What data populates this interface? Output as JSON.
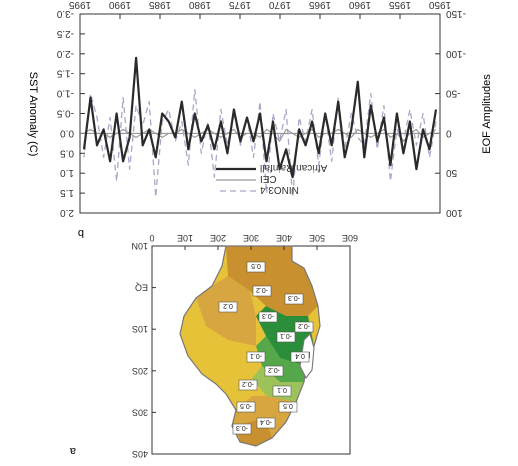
{
  "chart_data": [
    {
      "type": "line",
      "panel_label": "b",
      "orientation_note": "rotated 180 degrees",
      "x_ticks": [
        "1950",
        "1955",
        "1960",
        "1965",
        "1970",
        "1975",
        "1980",
        "1985",
        "1990",
        "1995"
      ],
      "ylabel_left": "SST Anomaly (C)",
      "ylabel_right": "EOF Amplitudes",
      "left_ticks": [
        "2.0",
        "1.5",
        "1.0",
        "0.5",
        "0.0",
        "-0.5",
        "-1.0",
        "-1.5",
        "-2.0",
        "-2.5",
        "-3.0"
      ],
      "right_ticks": [
        "100",
        "50",
        "0",
        "-50",
        "-100",
        "-150"
      ],
      "xlim": [
        1950,
        1995
      ],
      "ylim": [
        -3.0,
        2.0
      ],
      "grid": false,
      "legend_position": "bottom-left",
      "series": [
        {
          "name": "African Rainfall",
          "color": "#2a2a2a",
          "style": "solid-thick",
          "values": [
            -0.6,
            0.4,
            -0.1,
            0.9,
            -0.3,
            0.5,
            -0.5,
            0.8,
            -0.4,
            0.2,
            -0.7,
            0.6,
            -1.3,
            -0.1,
            0.6,
            -0.8,
            0.3,
            -0.5,
            0.5,
            -0.3,
            0.3,
            -0.1,
            1.1,
            0.4,
            0.9,
            -0.3,
            0.7,
            -0.5,
            0.2,
            -0.4,
            0.2,
            -0.6,
            0.5,
            -0.3,
            0.4,
            -0.2,
            0.2,
            -0.5,
            0.4,
            -0.8,
            0.1,
            -0.3,
            -0.5,
            0.6,
            -0.1,
            0.3,
            -1.9,
            0.1,
            0.7,
            -0.5,
            0.7,
            -0.1,
            0.3,
            -0.9,
            0.4
          ]
        },
        {
          "name": "CEI",
          "color": "#999999",
          "style": "solid-thin",
          "values": [
            -0.1,
            0.0,
            0.1,
            -0.1,
            0.0,
            0.2,
            0.0,
            0.1,
            -0.1,
            0.0,
            0.1,
            0.0,
            -0.1,
            0.1,
            0.0,
            -0.1,
            0.0,
            0.0,
            0.1,
            -0.1,
            0.0,
            0.1,
            0.0,
            -0.1,
            0.2,
            0.0,
            -0.1,
            0.1,
            0.0,
            0.0,
            0.1,
            -0.1,
            0.0,
            0.1,
            0.0,
            -0.1,
            0.0,
            0.1,
            0.0,
            -0.1,
            0.0,
            0.0,
            0.1,
            0.0,
            -0.1,
            0.0,
            0.1,
            0.0,
            -0.1,
            0.0,
            0.1,
            0.0,
            0.0,
            -0.1,
            0.0
          ]
        },
        {
          "name": "NINO3.4",
          "color": "#a8a8c8",
          "style": "dashed",
          "values": [
            -0.3,
            0.6,
            -0.5,
            0.3,
            -0.6,
            0.2,
            -0.1,
            1.2,
            -0.7,
            0.4,
            -1.0,
            0.3,
            0.1,
            -0.5,
            0.4,
            -0.9,
            0.7,
            -0.5,
            0.8,
            -0.6,
            0.2,
            -0.4,
            1.6,
            -0.6,
            0.2,
            -0.5,
            1.5,
            -0.8,
            0.6,
            -0.4,
            0.3,
            -0.5,
            0.3,
            -0.6,
            1.1,
            -0.3,
            0.5,
            -1.1,
            0.8,
            -0.3,
            0.2,
            -0.6,
            -0.3,
            1.6,
            -0.8,
            -0.2,
            -0.7,
            0.9,
            -0.9,
            1.2,
            -0.4,
            0.6,
            -0.4,
            -1.0,
            0.6
          ]
        }
      ]
    },
    {
      "type": "heatmap",
      "panel_label": "a",
      "orientation_note": "rotated 180 degrees",
      "x_ticks": [
        "0",
        "10E",
        "20E",
        "30E",
        "40E",
        "50E",
        "60E"
      ],
      "y_ticks": [
        "40S",
        "30S",
        "20S",
        "10S",
        "EQ",
        "10N"
      ],
      "contour_labels": [
        "-0.3",
        "-0.1",
        "-0.1",
        "-0.2",
        "-0.2",
        "0.1",
        "-0.2",
        "-0.3",
        "-0.2",
        "-0.5",
        "-0.4",
        "-0.3",
        "0.4",
        "0.5",
        "0.2",
        "0.5"
      ],
      "colors": {
        "negative_strong": "#c8902e",
        "negative_mid": "#d8a640",
        "negative_weak": "#e6c238",
        "near_zero": "#9ec25a",
        "positive_mid": "#55a84a",
        "positive_strong": "#2b8e3a",
        "coastline": "#777777"
      }
    }
  ]
}
